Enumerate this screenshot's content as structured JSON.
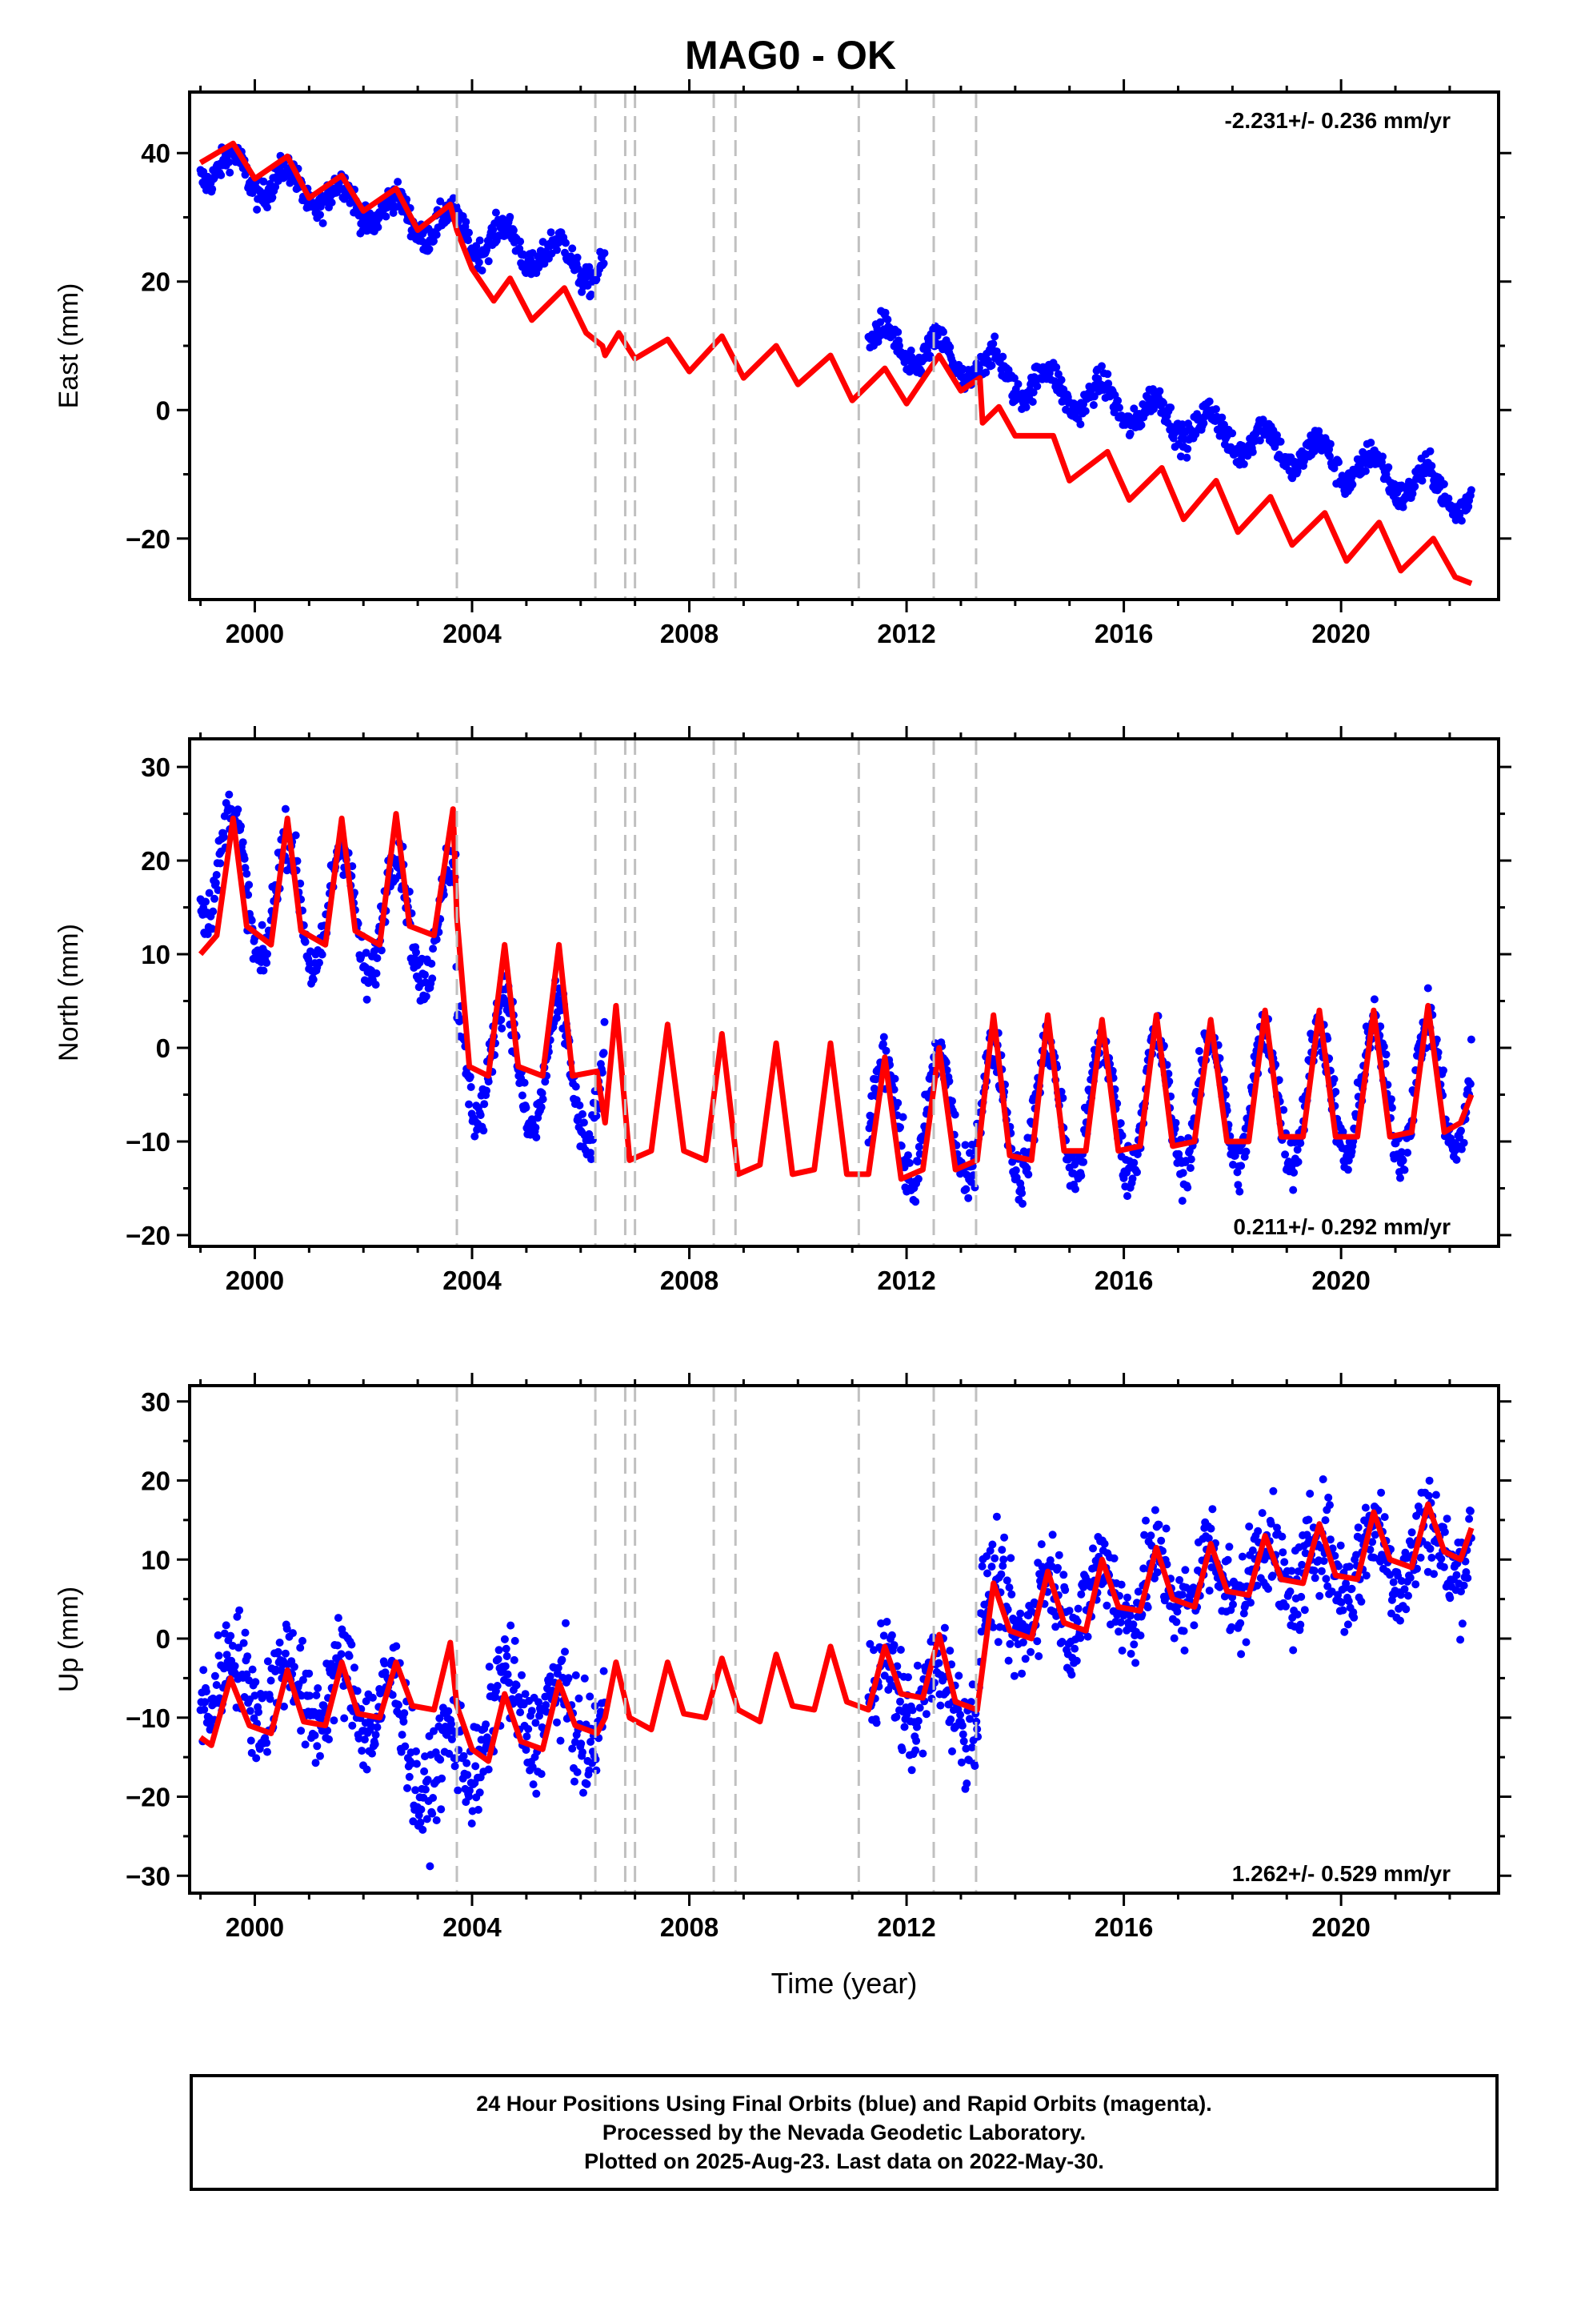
{
  "title": "MAG0 - OK",
  "chart_data": [
    {
      "type": "scatter",
      "panel": "east",
      "ylabel": "East (mm)",
      "xlabel": "",
      "xlim": [
        1998.8,
        2022.9
      ],
      "ylim": [
        -29.5,
        49.5
      ],
      "xticks": [
        2000,
        2004,
        2008,
        2012,
        2016,
        2020
      ],
      "yticks": [
        -20,
        0,
        20,
        40
      ],
      "annotation": "-2.231+/- 0.236 mm/yr",
      "annotation_position": "top-right",
      "observed": {
        "color": "#0000ff",
        "segments": [
          [
            1999.0,
            2006.45
          ],
          [
            2011.3,
            2022.4
          ]
        ],
        "trend_start": 38.5,
        "rate_mm_per_yr": -2.231,
        "seasonal_amplitude": 2.8,
        "scatter": 1.6
      },
      "model": {
        "color": "#ff0000",
        "points": [
          [
            1999.0,
            38.5
          ],
          [
            1999.6,
            41.5
          ],
          [
            2000.0,
            36.0
          ],
          [
            2000.6,
            39.5
          ],
          [
            2001.0,
            33.0
          ],
          [
            2001.6,
            36.5
          ],
          [
            2002.0,
            31.0
          ],
          [
            2002.6,
            34.5
          ],
          [
            2003.0,
            28.0
          ],
          [
            2003.6,
            32.0
          ],
          [
            2003.72,
            28.0
          ],
          [
            2004.0,
            22.0
          ],
          [
            2004.4,
            17.0
          ],
          [
            2004.7,
            20.5
          ],
          [
            2005.1,
            14.0
          ],
          [
            2005.7,
            19.0
          ],
          [
            2006.1,
            12.0
          ],
          [
            2006.4,
            10.0
          ],
          [
            2006.45,
            8.5
          ],
          [
            2006.7,
            12.0
          ],
          [
            2007.0,
            8.0
          ],
          [
            2007.6,
            11.0
          ],
          [
            2008.0,
            6.0
          ],
          [
            2008.6,
            11.5
          ],
          [
            2009.0,
            5.0
          ],
          [
            2009.6,
            10.0
          ],
          [
            2010.0,
            4.0
          ],
          [
            2010.6,
            8.5
          ],
          [
            2011.0,
            1.5
          ],
          [
            2011.6,
            6.5
          ],
          [
            2012.0,
            1.0
          ],
          [
            2012.6,
            8.5
          ],
          [
            2013.0,
            3.0
          ],
          [
            2013.35,
            5.0
          ],
          [
            2013.4,
            -2.0
          ],
          [
            2013.7,
            0.5
          ],
          [
            2014.0,
            -4.0
          ],
          [
            2014.7,
            -4.0
          ],
          [
            2015.0,
            -11.0
          ],
          [
            2015.7,
            -6.5
          ],
          [
            2016.1,
            -14.0
          ],
          [
            2016.7,
            -9.0
          ],
          [
            2017.1,
            -17.0
          ],
          [
            2017.7,
            -11.0
          ],
          [
            2018.1,
            -19.0
          ],
          [
            2018.7,
            -13.5
          ],
          [
            2019.1,
            -21.0
          ],
          [
            2019.7,
            -16.0
          ],
          [
            2020.1,
            -23.5
          ],
          [
            2020.7,
            -17.5
          ],
          [
            2021.1,
            -25.0
          ],
          [
            2021.7,
            -20.0
          ],
          [
            2022.1,
            -26.0
          ],
          [
            2022.4,
            -27.0
          ]
        ]
      },
      "event_lines": [
        2003.72,
        2006.27,
        2006.82,
        2007.0,
        2008.45,
        2008.85,
        2011.12,
        2012.5,
        2013.28
      ]
    },
    {
      "type": "scatter",
      "panel": "north",
      "ylabel": "North (mm)",
      "xlabel": "",
      "xlim": [
        1998.8,
        2022.9
      ],
      "ylim": [
        -21.2,
        33.0
      ],
      "xticks": [
        2000,
        2004,
        2008,
        2012,
        2016,
        2020
      ],
      "yticks": [
        -20,
        -10,
        0,
        10,
        20,
        30
      ],
      "annotation": "0.211+/- 0.292 mm/yr",
      "annotation_position": "bottom-right",
      "observed": {
        "color": "#0000ff",
        "segments": [
          [
            1999.0,
            2006.45
          ],
          [
            2011.3,
            2022.4
          ]
        ],
        "levels": [
          [
            1999.0,
            22.0
          ],
          [
            2000.0,
            16.0
          ],
          [
            2003.7,
            13.0
          ],
          [
            2003.72,
            0.0
          ],
          [
            2006.45,
            -4.0
          ],
          [
            2011.3,
            -8.0
          ],
          [
            2022.4,
            -4.0
          ]
        ],
        "seasonal_amplitude": 7.0,
        "scatter": 2.0
      },
      "model": {
        "color": "#ff0000",
        "points": [
          [
            1999.0,
            10.0
          ],
          [
            1999.3,
            12.0
          ],
          [
            1999.6,
            24.5
          ],
          [
            1999.85,
            13.0
          ],
          [
            2000.3,
            11.0
          ],
          [
            2000.6,
            24.5
          ],
          [
            2000.85,
            12.5
          ],
          [
            2001.3,
            11.0
          ],
          [
            2001.6,
            24.5
          ],
          [
            2001.85,
            12.5
          ],
          [
            2002.3,
            11.0
          ],
          [
            2002.6,
            25.0
          ],
          [
            2002.85,
            13.0
          ],
          [
            2003.3,
            12.0
          ],
          [
            2003.65,
            25.5
          ],
          [
            2003.72,
            14.0
          ],
          [
            2003.95,
            -2.0
          ],
          [
            2004.3,
            -3.0
          ],
          [
            2004.6,
            11.0
          ],
          [
            2004.85,
            -2.0
          ],
          [
            2005.3,
            -3.0
          ],
          [
            2005.6,
            11.0
          ],
          [
            2005.85,
            -3.0
          ],
          [
            2006.3,
            -2.5
          ],
          [
            2006.45,
            -8.0
          ],
          [
            2006.65,
            4.5
          ],
          [
            2006.9,
            -12.0
          ],
          [
            2007.3,
            -11.0
          ],
          [
            2007.6,
            2.5
          ],
          [
            2007.9,
            -11.0
          ],
          [
            2008.3,
            -12.0
          ],
          [
            2008.6,
            1.5
          ],
          [
            2008.9,
            -13.5
          ],
          [
            2009.3,
            -12.5
          ],
          [
            2009.6,
            0.5
          ],
          [
            2009.9,
            -13.5
          ],
          [
            2010.3,
            -13.0
          ],
          [
            2010.6,
            0.5
          ],
          [
            2010.9,
            -13.5
          ],
          [
            2011.3,
            -13.5
          ],
          [
            2011.6,
            -1.0
          ],
          [
            2011.9,
            -14.0
          ],
          [
            2012.3,
            -13.0
          ],
          [
            2012.6,
            0.0
          ],
          [
            2012.9,
            -13.0
          ],
          [
            2013.3,
            -12.0
          ],
          [
            2013.6,
            3.5
          ],
          [
            2013.9,
            -11.5
          ],
          [
            2014.3,
            -12.0
          ],
          [
            2014.6,
            3.5
          ],
          [
            2014.9,
            -11.0
          ],
          [
            2015.3,
            -11.0
          ],
          [
            2015.6,
            3.0
          ],
          [
            2015.9,
            -11.0
          ],
          [
            2016.3,
            -10.5
          ],
          [
            2016.6,
            3.5
          ],
          [
            2016.9,
            -10.5
          ],
          [
            2017.3,
            -10.0
          ],
          [
            2017.6,
            3.0
          ],
          [
            2017.9,
            -10.0
          ],
          [
            2018.3,
            -10.0
          ],
          [
            2018.6,
            4.0
          ],
          [
            2018.9,
            -9.5
          ],
          [
            2019.3,
            -9.5
          ],
          [
            2019.6,
            4.0
          ],
          [
            2019.9,
            -9.5
          ],
          [
            2020.3,
            -9.5
          ],
          [
            2020.6,
            4.0
          ],
          [
            2020.9,
            -9.5
          ],
          [
            2021.3,
            -9.0
          ],
          [
            2021.6,
            4.5
          ],
          [
            2021.9,
            -9.0
          ],
          [
            2022.2,
            -8.0
          ],
          [
            2022.4,
            -5.0
          ]
        ]
      },
      "event_lines": [
        2003.72,
        2006.27,
        2006.82,
        2007.0,
        2008.45,
        2008.85,
        2011.12,
        2012.5,
        2013.28
      ]
    },
    {
      "type": "scatter",
      "panel": "up",
      "ylabel": "Up (mm)",
      "xlabel": "Time (year)",
      "xlim": [
        1998.8,
        2022.9
      ],
      "ylim": [
        -32.2,
        32.0
      ],
      "xticks": [
        2000,
        2004,
        2008,
        2012,
        2016,
        2020
      ],
      "yticks": [
        -30,
        -20,
        -10,
        0,
        10,
        20,
        30
      ],
      "annotation": "1.262+/- 0.529 mm/yr",
      "annotation_position": "bottom-right",
      "observed": {
        "color": "#0000ff",
        "segments": [
          [
            1999.0,
            2006.45
          ],
          [
            2011.3,
            2022.4
          ]
        ],
        "levels": [
          [
            1999.0,
            -5.0
          ],
          [
            2002.5,
            -8.0
          ],
          [
            2003.0,
            -17.0
          ],
          [
            2004.0,
            -15.0
          ],
          [
            2004.5,
            -8.0
          ],
          [
            2006.45,
            -11.0
          ],
          [
            2011.3,
            -6.0
          ],
          [
            2013.3,
            -8.0
          ],
          [
            2013.4,
            3.0
          ],
          [
            2017.0,
            7.0
          ],
          [
            2022.4,
            12.0
          ]
        ],
        "seasonal_amplitude": 4.0,
        "scatter": 4.5
      },
      "model": {
        "color": "#ff0000",
        "points": [
          [
            1999.0,
            -12.5
          ],
          [
            1999.2,
            -13.5
          ],
          [
            1999.55,
            -5.0
          ],
          [
            1999.9,
            -11.0
          ],
          [
            2000.3,
            -12.0
          ],
          [
            2000.6,
            -4.0
          ],
          [
            2000.9,
            -10.5
          ],
          [
            2001.3,
            -11.0
          ],
          [
            2001.6,
            -3.0
          ],
          [
            2001.9,
            -9.5
          ],
          [
            2002.3,
            -10.0
          ],
          [
            2002.6,
            -3.0
          ],
          [
            2002.9,
            -8.5
          ],
          [
            2003.3,
            -9.0
          ],
          [
            2003.6,
            -0.5
          ],
          [
            2003.72,
            -8.5
          ],
          [
            2004.0,
            -14.0
          ],
          [
            2004.3,
            -15.5
          ],
          [
            2004.6,
            -7.0
          ],
          [
            2004.9,
            -13.0
          ],
          [
            2005.3,
            -14.0
          ],
          [
            2005.6,
            -5.5
          ],
          [
            2005.9,
            -11.0
          ],
          [
            2006.3,
            -12.0
          ],
          [
            2006.45,
            -10.0
          ],
          [
            2006.65,
            -3.0
          ],
          [
            2006.9,
            -10.0
          ],
          [
            2007.3,
            -11.5
          ],
          [
            2007.6,
            -3.0
          ],
          [
            2007.9,
            -9.5
          ],
          [
            2008.3,
            -10.0
          ],
          [
            2008.6,
            -2.5
          ],
          [
            2008.9,
            -9.0
          ],
          [
            2009.3,
            -10.5
          ],
          [
            2009.6,
            -2.0
          ],
          [
            2009.9,
            -8.5
          ],
          [
            2010.3,
            -9.0
          ],
          [
            2010.6,
            -1.0
          ],
          [
            2010.9,
            -8.0
          ],
          [
            2011.3,
            -9.0
          ],
          [
            2011.6,
            -1.0
          ],
          [
            2011.9,
            -7.0
          ],
          [
            2012.3,
            -7.5
          ],
          [
            2012.6,
            0.5
          ],
          [
            2012.9,
            -8.0
          ],
          [
            2013.3,
            -9.0
          ],
          [
            2013.6,
            7.0
          ],
          [
            2013.9,
            1.0
          ],
          [
            2014.3,
            0.0
          ],
          [
            2014.6,
            8.5
          ],
          [
            2014.9,
            2.0
          ],
          [
            2015.3,
            1.0
          ],
          [
            2015.6,
            10.0
          ],
          [
            2015.9,
            4.0
          ],
          [
            2016.3,
            3.5
          ],
          [
            2016.6,
            11.5
          ],
          [
            2016.9,
            5.0
          ],
          [
            2017.3,
            4.0
          ],
          [
            2017.6,
            12.0
          ],
          [
            2017.9,
            6.0
          ],
          [
            2018.3,
            5.5
          ],
          [
            2018.6,
            13.0
          ],
          [
            2018.9,
            7.5
          ],
          [
            2019.3,
            7.0
          ],
          [
            2019.6,
            14.5
          ],
          [
            2019.9,
            8.0
          ],
          [
            2020.3,
            7.5
          ],
          [
            2020.6,
            16.0
          ],
          [
            2020.9,
            10.0
          ],
          [
            2021.3,
            9.0
          ],
          [
            2021.6,
            17.0
          ],
          [
            2021.9,
            11.0
          ],
          [
            2022.2,
            10.0
          ],
          [
            2022.4,
            14.0
          ]
        ]
      },
      "event_lines": [
        2003.72,
        2006.27,
        2006.82,
        2007.0,
        2008.45,
        2008.85,
        2011.12,
        2012.5,
        2013.28
      ]
    }
  ],
  "footer": {
    "line1": "24 Hour Positions Using Final Orbits (blue) and Rapid Orbits (magenta).",
    "line2": "Processed by the Nevada Geodetic Laboratory.",
    "line3": "Plotted on 2025-Aug-23. Last data on 2022-May-30."
  }
}
